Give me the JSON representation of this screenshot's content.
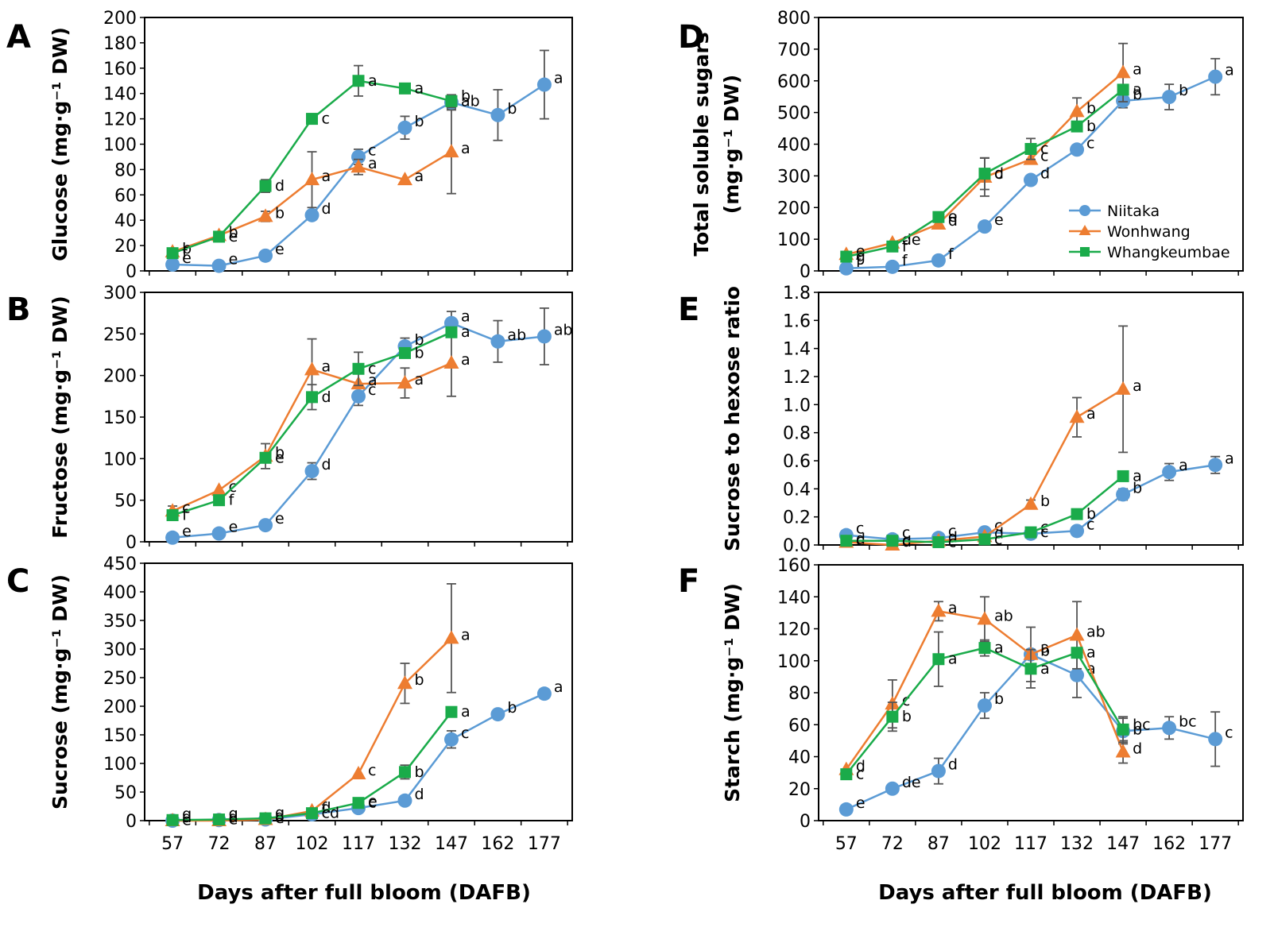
{
  "series_colors": {
    "Niitaka": "#5B9BD5",
    "Wonhwang": "#ED7D31",
    "Whangkeumbae": "#1AAB4A"
  },
  "legend": [
    "Niitaka",
    "Wonhwang",
    "Whangkeumbae"
  ],
  "x_ticks": [
    "57",
    "72",
    "87",
    "102",
    "117",
    "132",
    "147",
    "162",
    "177"
  ],
  "xlabel": "Days after full bloom (DAFB)",
  "chart_data": [
    {
      "panel": "A",
      "type": "line",
      "ylabel": "Glucose (mg·g⁻¹ DW)",
      "ylim": [
        0,
        200
      ],
      "yticks": [
        "0",
        "20",
        "40",
        "60",
        "80",
        "100",
        "120",
        "140",
        "160",
        "180",
        "200"
      ],
      "x": [
        57,
        72,
        87,
        102,
        117,
        132,
        147,
        162,
        177
      ],
      "series": [
        {
          "name": "Niitaka",
          "values": [
            5,
            4,
            12,
            44,
            90,
            113,
            133,
            123,
            147
          ],
          "errors": [
            0,
            0,
            0,
            3,
            6,
            9,
            5,
            20,
            27
          ],
          "labels": [
            "e",
            "e",
            "e",
            "d",
            "c",
            "b",
            "b",
            "b",
            "a"
          ]
        },
        {
          "name": "Wonhwang",
          "values": [
            15,
            28,
            43,
            72,
            82,
            72,
            94,
            null,
            null
          ],
          "errors": [
            0,
            0,
            4,
            22,
            6,
            0,
            33,
            0,
            0
          ],
          "labels": [
            "b",
            "b",
            "b",
            "a",
            "a",
            "a",
            "a",
            "",
            ""
          ]
        },
        {
          "name": "Whangkeumbae",
          "values": [
            14,
            27,
            67,
            120,
            150,
            144,
            134,
            null,
            null
          ],
          "errors": [
            0,
            0,
            5,
            4,
            12,
            4,
            5,
            0,
            0
          ],
          "labels": [
            "f",
            "e",
            "d",
            "c",
            "a",
            "a",
            "ab",
            "",
            ""
          ]
        }
      ]
    },
    {
      "panel": "B",
      "type": "line",
      "ylabel": "Fructose (mg·g⁻¹ DW)",
      "ylim": [
        0,
        300
      ],
      "yticks": [
        "0",
        "50",
        "100",
        "150",
        "200",
        "250",
        "300"
      ],
      "x": [
        57,
        72,
        87,
        102,
        117,
        132,
        147,
        162,
        177
      ],
      "series": [
        {
          "name": "Niitaka",
          "values": [
            5,
            10,
            20,
            85,
            175,
            235,
            263,
            241,
            247
          ],
          "errors": [
            0,
            0,
            0,
            10,
            11,
            10,
            14,
            25,
            34
          ],
          "labels": [
            "e",
            "e",
            "e",
            "d",
            "c",
            "b",
            "a",
            "ab",
            "ab"
          ]
        },
        {
          "name": "Wonhwang",
          "values": [
            37,
            62,
            103,
            207,
            190,
            191,
            215,
            null,
            null
          ],
          "errors": [
            6,
            0,
            15,
            37,
            0,
            18,
            40,
            0,
            0
          ],
          "labels": [
            "c",
            "c",
            "b",
            "a",
            "a",
            "a",
            "a",
            "",
            ""
          ]
        },
        {
          "name": "Whangkeumbae",
          "values": [
            32,
            50,
            101,
            174,
            208,
            227,
            252,
            null,
            null
          ],
          "errors": [
            0,
            0,
            0,
            15,
            20,
            0,
            5,
            0,
            0
          ],
          "labels": [
            "f",
            "f",
            "e",
            "d",
            "c",
            "b",
            "a",
            "",
            ""
          ]
        }
      ]
    },
    {
      "panel": "C",
      "type": "line",
      "ylabel": "Sucrose (mg·g⁻¹ DW)",
      "ylim": [
        0,
        450
      ],
      "yticks": [
        "0",
        "50",
        "100",
        "150",
        "200",
        "250",
        "300",
        "350",
        "400",
        "450"
      ],
      "x": [
        57,
        72,
        87,
        102,
        117,
        132,
        147,
        162,
        177
      ],
      "series": [
        {
          "name": "Niitaka",
          "values": [
            0,
            1,
            2,
            11,
            22,
            35,
            142,
            186,
            222
          ],
          "errors": [
            0,
            0,
            0,
            0,
            0,
            0,
            15,
            0,
            0
          ],
          "labels": [
            "g",
            "g",
            "g",
            "f",
            "e",
            "d",
            "c",
            "b",
            "a"
          ]
        },
        {
          "name": "Wonhwang",
          "values": [
            0,
            0,
            2,
            17,
            82,
            240,
            319,
            null,
            null
          ],
          "errors": [
            0,
            0,
            0,
            0,
            0,
            35,
            95,
            0,
            0
          ],
          "labels": [
            "d",
            "d",
            "d",
            "d",
            "c",
            "b",
            "a",
            "",
            ""
          ]
        },
        {
          "name": "Whangkeumbae",
          "values": [
            1,
            2,
            4,
            13,
            31,
            85,
            190,
            null,
            null
          ],
          "errors": [
            0,
            0,
            0,
            0,
            0,
            12,
            8,
            0,
            0
          ],
          "labels": [
            "e",
            "e",
            "e",
            "cd",
            "c",
            "b",
            "a",
            "",
            ""
          ]
        }
      ]
    },
    {
      "panel": "D",
      "type": "line",
      "ylabel": "Total soluble sugars (mg·g⁻¹ DW)",
      "ylim": [
        0,
        800
      ],
      "yticks": [
        "0",
        "100",
        "200",
        "300",
        "400",
        "500",
        "600",
        "700",
        "800"
      ],
      "x": [
        57,
        72,
        87,
        102,
        117,
        132,
        147,
        162,
        177
      ],
      "series": [
        {
          "name": "Niitaka",
          "values": [
            8,
            13,
            33,
            140,
            287,
            383,
            537,
            549,
            613
          ],
          "errors": [
            0,
            0,
            0,
            0,
            0,
            12,
            22,
            40,
            57
          ],
          "labels": [
            "f",
            "f",
            "f",
            "e",
            "d",
            "c",
            "b",
            "b",
            "a"
          ]
        },
        {
          "name": "Wonhwang",
          "values": [
            52,
            88,
            148,
            296,
            352,
            503,
            626,
            null,
            null
          ],
          "errors": [
            0,
            0,
            15,
            60,
            0,
            43,
            92,
            0,
            0
          ],
          "labels": [
            "e",
            "de",
            "d",
            "c",
            "c",
            "b",
            "a",
            "",
            ""
          ]
        },
        {
          "name": "Whangkeumbae",
          "values": [
            45,
            77,
            170,
            307,
            385,
            456,
            572,
            null,
            null
          ],
          "errors": [
            0,
            0,
            0,
            50,
            33,
            0,
            0,
            0,
            0
          ],
          "labels": [
            "g",
            "f",
            "e",
            "d",
            "c",
            "b",
            "a",
            "",
            ""
          ]
        }
      ]
    },
    {
      "panel": "E",
      "type": "line",
      "ylabel": "Sucrose to hexose ratio",
      "ylim": [
        0,
        1.8
      ],
      "yticks": [
        "0.0",
        "0.2",
        "0.4",
        "0.6",
        "0.8",
        "1.0",
        "1.2",
        "1.4",
        "1.6",
        "1.8"
      ],
      "x": [
        57,
        72,
        87,
        102,
        117,
        132,
        147,
        162,
        177
      ],
      "series": [
        {
          "name": "Niitaka",
          "values": [
            0.07,
            0.04,
            0.05,
            0.09,
            0.08,
            0.1,
            0.36,
            0.52,
            0.57
          ],
          "errors": [
            0,
            0,
            0,
            0,
            0,
            0,
            0.04,
            0.06,
            0.06
          ],
          "labels": [
            "c",
            "c",
            "c",
            "c",
            "c",
            "c",
            "b",
            "a",
            "a"
          ]
        },
        {
          "name": "Wonhwang",
          "values": [
            0.02,
            0.0,
            0.03,
            0.06,
            0.29,
            0.91,
            1.11,
            null,
            null
          ],
          "errors": [
            0,
            0,
            0,
            0,
            0.03,
            0.14,
            0.45,
            0,
            0
          ],
          "labels": [
            "d",
            "d",
            "d",
            "d",
            "b",
            "a",
            "a",
            "",
            ""
          ]
        },
        {
          "name": "Whangkeumbae",
          "values": [
            0.03,
            0.03,
            0.02,
            0.04,
            0.09,
            0.22,
            0.49,
            null,
            null
          ],
          "errors": [
            0,
            0,
            0,
            0,
            0,
            0.03,
            0,
            0,
            0
          ],
          "labels": [
            "c",
            "c",
            "c",
            "c",
            "c",
            "b",
            "a",
            "",
            ""
          ]
        }
      ]
    },
    {
      "panel": "F",
      "type": "line",
      "ylabel": "Starch (mg·g⁻¹ DW)",
      "ylim": [
        0,
        160
      ],
      "yticks": [
        "0",
        "20",
        "40",
        "60",
        "80",
        "100",
        "120",
        "140",
        "160"
      ],
      "x": [
        57,
        72,
        87,
        102,
        117,
        132,
        147,
        162,
        177
      ],
      "series": [
        {
          "name": "Niitaka",
          "values": [
            7,
            20,
            31,
            72,
            104,
            91,
            56,
            58,
            51
          ],
          "errors": [
            0,
            0,
            8,
            8,
            17,
            14,
            8,
            7,
            17
          ],
          "labels": [
            "e",
            "de",
            "d",
            "b",
            "a",
            "a",
            "bc",
            "bc",
            "c"
          ]
        },
        {
          "name": "Wonhwang",
          "values": [
            32,
            73,
            131,
            126,
            104,
            116,
            43,
            null,
            null
          ],
          "errors": [
            0,
            15,
            6,
            14,
            0,
            21,
            7,
            0,
            0
          ],
          "labels": [
            "d",
            "c",
            "a",
            "ab",
            "b",
            "ab",
            "d",
            "",
            ""
          ]
        },
        {
          "name": "Whangkeumbae",
          "values": [
            29,
            65,
            101,
            108,
            95,
            105,
            57,
            null,
            null
          ],
          "errors": [
            0,
            9,
            17,
            5,
            12,
            0,
            8,
            0,
            0
          ],
          "labels": [
            "c",
            "b",
            "a",
            "a",
            "a",
            "a",
            "b",
            "",
            ""
          ]
        }
      ]
    }
  ]
}
